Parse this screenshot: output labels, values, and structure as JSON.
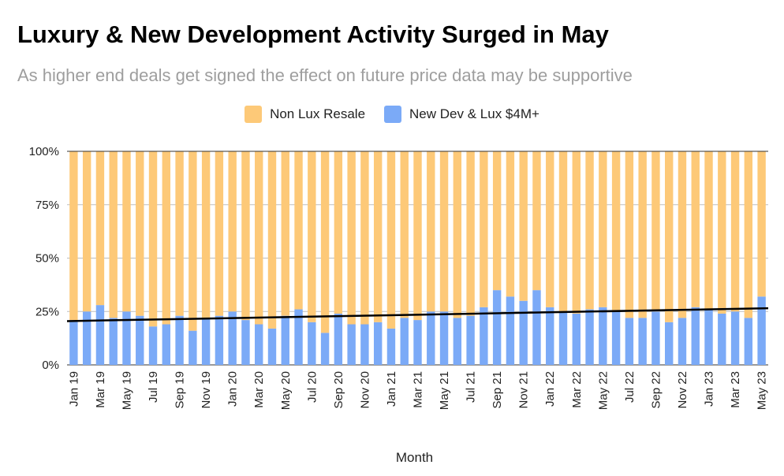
{
  "chart_data": {
    "type": "bar",
    "stacked": "percent",
    "title": "Luxury & New Development Activity Surged in May",
    "subtitle": "As higher end deals get signed the effect on future price data may be supportive",
    "xlabel": "Month",
    "ylabel": "",
    "ylim": [
      0,
      100
    ],
    "y_ticks": [
      "0%",
      "25%",
      "50%",
      "75%",
      "100%"
    ],
    "legend_position": "top-center",
    "grid": true,
    "trendline": {
      "series": "New Dev & Lux $4M+",
      "type": "linear",
      "start": 20.5,
      "end": 26.5,
      "color": "#000000"
    },
    "x_tick_labels": [
      "Jan 19",
      "Mar 19",
      "May 19",
      "Jul 19",
      "Sep 19",
      "Nov 19",
      "Jan 20",
      "Mar 20",
      "May 20",
      "Jul 20",
      "Sep 20",
      "Nov 20",
      "Jan 21",
      "Mar 21",
      "May 21",
      "Jul 21",
      "Sep 21",
      "Nov 21",
      "Jan 22",
      "Mar 22",
      "May 22",
      "Jul 22",
      "Sep 22",
      "Nov 22",
      "Jan 23",
      "Mar 23",
      "May 23"
    ],
    "categories": [
      "Jan 19",
      "Feb 19",
      "Mar 19",
      "Apr 19",
      "May 19",
      "Jun 19",
      "Jul 19",
      "Aug 19",
      "Sep 19",
      "Oct 19",
      "Nov 19",
      "Dec 19",
      "Jan 20",
      "Feb 20",
      "Mar 20",
      "Apr 20",
      "May 20",
      "Jun 20",
      "Jul 20",
      "Aug 20",
      "Sep 20",
      "Oct 20",
      "Nov 20",
      "Dec 20",
      "Jan 21",
      "Feb 21",
      "Mar 21",
      "Apr 21",
      "May 21",
      "Jun 21",
      "Jul 21",
      "Aug 21",
      "Sep 21",
      "Oct 21",
      "Nov 21",
      "Dec 21",
      "Jan 22",
      "Feb 22",
      "Mar 22",
      "Apr 22",
      "May 22",
      "Jun 22",
      "Jul 22",
      "Aug 22",
      "Sep 22",
      "Oct 22",
      "Nov 22",
      "Dec 22",
      "Jan 23",
      "Feb 23",
      "Mar 23",
      "Apr 23",
      "May 23"
    ],
    "series": [
      {
        "name": "New Dev & Lux $4M+",
        "color": "#7baaf7",
        "values": [
          21,
          25,
          28,
          22,
          25,
          23,
          18,
          19,
          23,
          16,
          22,
          23,
          25,
          21,
          19,
          17,
          23,
          26,
          20,
          15,
          24,
          19,
          19,
          20,
          17,
          22,
          21,
          25,
          25,
          22,
          23,
          27,
          35,
          32,
          30,
          35,
          27,
          25,
          24,
          26,
          27,
          25,
          22,
          22,
          25,
          20,
          22,
          27,
          26,
          24,
          25,
          22,
          32
        ]
      },
      {
        "name": "Non Lux Resale",
        "color": "#fdc978",
        "values": [
          79,
          75,
          72,
          78,
          75,
          77,
          82,
          81,
          77,
          84,
          78,
          77,
          75,
          79,
          81,
          83,
          77,
          74,
          80,
          85,
          76,
          81,
          81,
          80,
          83,
          78,
          79,
          75,
          75,
          78,
          77,
          73,
          65,
          68,
          70,
          65,
          73,
          75,
          76,
          74,
          73,
          75,
          78,
          78,
          75,
          80,
          78,
          73,
          74,
          76,
          75,
          78,
          68
        ]
      }
    ]
  }
}
